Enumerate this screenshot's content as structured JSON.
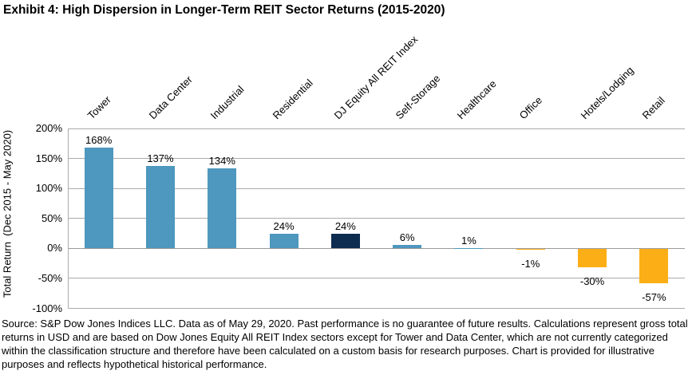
{
  "title": "Exhibit 4: High Dispersion in Longer-Term REIT Sector Returns (2015-2020)",
  "footnote": "Source: S&P Dow Jones Indices LLC. Data as of May 29, 2020. Past performance is no guarantee of future results. Calculations represent gross total returns in USD and are based on Dow Jones Equity All REIT Index sectors except for Tower and Data Center, which are not currently categorized within the classification structure and therefore have been calculated on a custom basis for research purposes. Chart is provided for illustrative purposes and reflects hypothetical historical performance.",
  "chart_data": {
    "type": "bar",
    "title": "Exhibit 4: High Dispersion in Longer-Term REIT Sector Returns (2015-2020)",
    "ylabel": "Total Return  (Dec 2015 - May 2020)",
    "ylim": [
      -100,
      200
    ],
    "yticks": [
      200,
      150,
      100,
      50,
      0,
      -50,
      -100
    ],
    "ytick_labels": [
      "200%",
      "150%",
      "100%",
      "50%",
      "0%",
      "-50%",
      "-100%"
    ],
    "grid": true,
    "legend": "none",
    "category_labels_position": "top",
    "category_labels_rotation_deg": 45,
    "categories": [
      "Tower",
      "Data Center",
      "Industrial",
      "Residential",
      "DJ Equity All REIT Index",
      "Self-Storage",
      "Healthcare",
      "Office",
      "Hotels/Lodging",
      "Retail"
    ],
    "values": [
      168,
      137,
      134,
      24,
      24,
      6,
      1,
      -1,
      -30,
      -57
    ],
    "value_labels": [
      "168%",
      "137%",
      "134%",
      "24%",
      "24%",
      "6%",
      "1%",
      "-1%",
      "-30%",
      "-57%"
    ],
    "bar_colors": [
      "#4E97BE",
      "#4E97BE",
      "#4E97BE",
      "#4E97BE",
      "#0E2B50",
      "#4E97BE",
      "#4E97BE",
      "#FCAE17",
      "#FCAE17",
      "#FCAE17"
    ],
    "palette": {
      "sector_blue": "#4E97BE",
      "index_navy": "#0E2B50",
      "negative_orange": "#FCAE17",
      "gridline_gray": "#ABABAB"
    }
  }
}
